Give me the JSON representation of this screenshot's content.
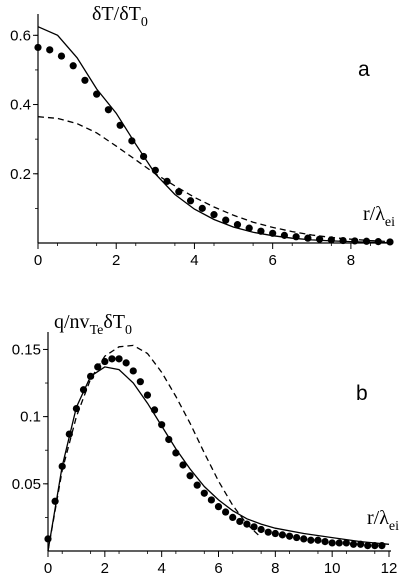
{
  "chart_data": [
    {
      "panel_label": "a",
      "type": "line",
      "ylabel": "δT/δT0",
      "xlabel": "r/λei",
      "xlim": [
        0,
        9
      ],
      "ylim": [
        0,
        0.65
      ],
      "x_ticks": [
        0,
        2,
        4,
        6,
        8
      ],
      "y_ticks": [
        0.2,
        0.4,
        0.6
      ],
      "grid": false,
      "series": [
        {
          "style": "solid",
          "color": "#000000",
          "x": [
            0,
            0.5,
            1,
            1.5,
            2,
            2.5,
            3,
            3.5,
            4,
            4.5,
            5,
            5.5,
            6,
            6.5,
            7,
            7.5,
            8,
            8.5,
            9
          ],
          "values": [
            0.625,
            0.6,
            0.535,
            0.445,
            0.375,
            0.285,
            0.2,
            0.14,
            0.098,
            0.068,
            0.046,
            0.031,
            0.021,
            0.014,
            0.009,
            0.006,
            0.004,
            0.002,
            0.001
          ]
        },
        {
          "style": "dots",
          "color": "#000000",
          "x": [
            0,
            0.3,
            0.6,
            0.9,
            1.2,
            1.5,
            1.8,
            2.1,
            2.4,
            2.7,
            3.0,
            3.3,
            3.6,
            3.9,
            4.2,
            4.5,
            4.8,
            5.1,
            5.4,
            5.7,
            6.0,
            6.3,
            6.6,
            6.9,
            7.2,
            7.5,
            7.8,
            8.1,
            8.4,
            8.7,
            9.0
          ],
          "values": [
            0.565,
            0.558,
            0.54,
            0.512,
            0.47,
            0.43,
            0.385,
            0.34,
            0.295,
            0.25,
            0.21,
            0.178,
            0.148,
            0.122,
            0.1,
            0.082,
            0.066,
            0.053,
            0.043,
            0.034,
            0.028,
            0.022,
            0.018,
            0.014,
            0.011,
            0.009,
            0.007,
            0.006,
            0.005,
            0.004,
            0.003
          ]
        },
        {
          "style": "dashed",
          "color": "#000000",
          "x": [
            0,
            0.5,
            1,
            1.5,
            2,
            2.5,
            3,
            3.5,
            4,
            4.5,
            5,
            5.5,
            6,
            6.5,
            7,
            7.5,
            8,
            8.5,
            9
          ],
          "values": [
            0.365,
            0.36,
            0.345,
            0.318,
            0.28,
            0.24,
            0.2,
            0.165,
            0.132,
            0.104,
            0.08,
            0.06,
            0.045,
            0.033,
            0.023,
            0.016,
            0.011,
            0.007,
            0.004
          ]
        }
      ]
    },
    {
      "panel_label": "b",
      "type": "line",
      "ylabel": "q/nvTeδT0",
      "xlabel": "r/λei",
      "xlim": [
        0,
        12
      ],
      "ylim": [
        0,
        0.16
      ],
      "x_ticks": [
        0,
        2,
        4,
        6,
        8,
        10,
        12
      ],
      "y_ticks": [
        0.05,
        0.1,
        0.15
      ],
      "grid": false,
      "series": [
        {
          "style": "solid",
          "color": "#000000",
          "x": [
            0,
            0.5,
            1,
            1.5,
            2,
            2.5,
            3,
            3.5,
            4,
            4.5,
            5,
            5.5,
            6,
            6.5,
            7,
            7.5,
            8,
            9,
            10,
            11,
            12
          ],
          "values": [
            0,
            0.063,
            0.107,
            0.13,
            0.137,
            0.135,
            0.125,
            0.11,
            0.093,
            0.076,
            0.061,
            0.048,
            0.038,
            0.03,
            0.024,
            0.02,
            0.017,
            0.013,
            0.01,
            0.007,
            0.005
          ]
        },
        {
          "style": "dots",
          "color": "#000000",
          "x": [
            0,
            0.25,
            0.5,
            0.75,
            1.0,
            1.25,
            1.5,
            1.75,
            2.0,
            2.25,
            2.5,
            2.75,
            3.0,
            3.25,
            3.5,
            3.75,
            4.0,
            4.25,
            4.5,
            4.75,
            5.0,
            5.25,
            5.5,
            5.75,
            6.0,
            6.25,
            6.5,
            6.75,
            7.0,
            7.25,
            7.5,
            7.75,
            8.0,
            8.25,
            8.5,
            8.75,
            9.0,
            9.25,
            9.5,
            9.75,
            10.0,
            10.25,
            10.5,
            10.75,
            11.0,
            11.25,
            11.5,
            11.75
          ],
          "values": [
            0.009,
            0.037,
            0.063,
            0.087,
            0.106,
            0.12,
            0.13,
            0.137,
            0.141,
            0.143,
            0.143,
            0.14,
            0.134,
            0.126,
            0.116,
            0.105,
            0.094,
            0.083,
            0.073,
            0.064,
            0.056,
            0.049,
            0.043,
            0.038,
            0.033,
            0.029,
            0.025,
            0.022,
            0.02,
            0.018,
            0.016,
            0.014,
            0.013,
            0.012,
            0.011,
            0.01,
            0.009,
            0.008,
            0.008,
            0.007,
            0.006,
            0.006,
            0.006,
            0.005,
            0.005,
            0.004,
            0.004,
            0.004
          ]
        },
        {
          "style": "dashed",
          "color": "#000000",
          "x": [
            0,
            0.5,
            1,
            1.5,
            2,
            2.5,
            3,
            3.5,
            4,
            4.5,
            5,
            5.5,
            6,
            6.5,
            7,
            7.5
          ],
          "values": [
            0,
            0.06,
            0.1,
            0.128,
            0.145,
            0.152,
            0.153,
            0.147,
            0.133,
            0.115,
            0.095,
            0.073,
            0.052,
            0.034,
            0.02,
            0.01
          ]
        }
      ]
    }
  ]
}
